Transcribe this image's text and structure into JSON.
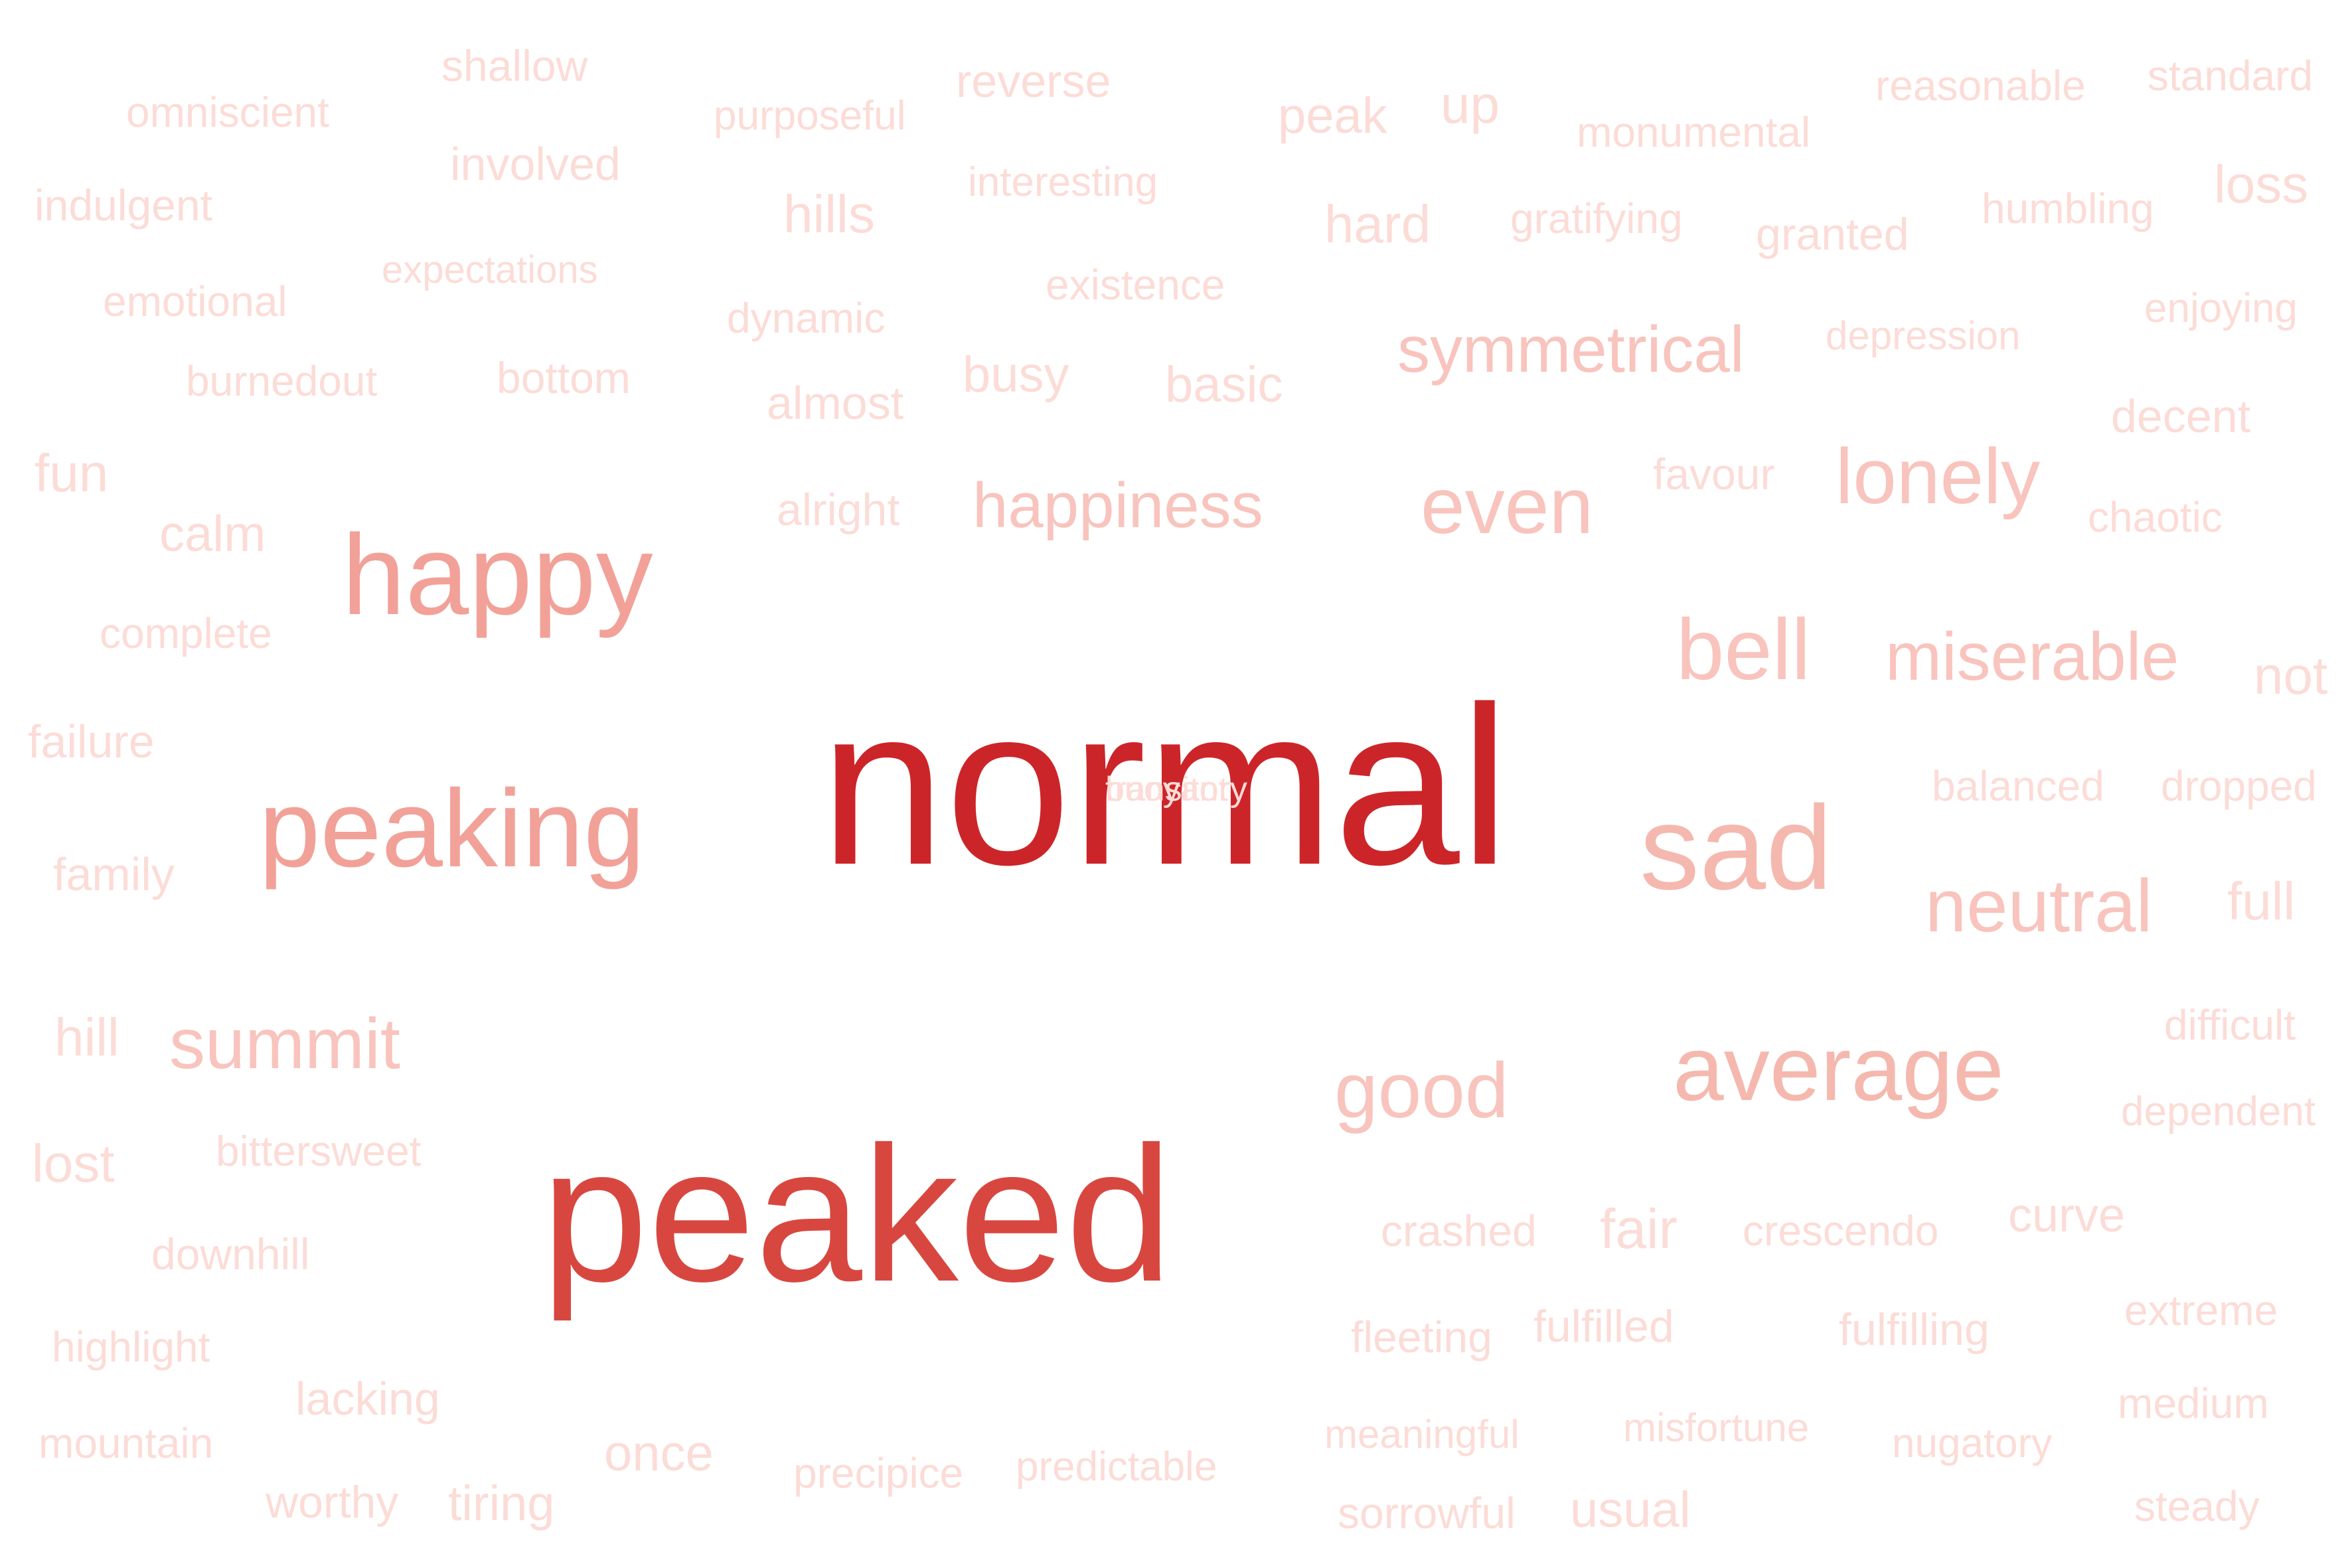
{
  "word_cloud": {
    "words": [
      {
        "text": "normal",
        "weight": 100,
        "color": "#cc2529"
      },
      {
        "text": "peaked",
        "weight": 70,
        "color": "#d8473f"
      },
      {
        "text": "happy",
        "weight": 32,
        "color": "#f2a198"
      },
      {
        "text": "peaking",
        "weight": 30,
        "color": "#f2a198"
      },
      {
        "text": "sad",
        "weight": 29,
        "color": "#f5b8ae"
      },
      {
        "text": "average",
        "weight": 24,
        "color": "#f5b8ae"
      },
      {
        "text": "bell",
        "weight": 22,
        "color": "#f8c4bd"
      },
      {
        "text": "even",
        "weight": 22,
        "color": "#f8c4bd"
      },
      {
        "text": "lonely",
        "weight": 21,
        "color": "#f8c4bd"
      },
      {
        "text": "miserable",
        "weight": 19,
        "color": "#f8c4bd"
      },
      {
        "text": "neutral",
        "weight": 19,
        "color": "#f8c4bd"
      },
      {
        "text": "summit",
        "weight": 19,
        "color": "#f8c4bd"
      },
      {
        "text": "good",
        "weight": 19,
        "color": "#f8c4bd"
      },
      {
        "text": "happiness",
        "weight": 18,
        "color": "#f8c4bd"
      },
      {
        "text": "symmetrical",
        "weight": 17,
        "color": "#f8c4bd"
      },
      {
        "text": "shallow",
        "weight": 12,
        "color": "#fcdcd7"
      },
      {
        "text": "omniscient",
        "weight": 12,
        "color": "#fcdcd7"
      },
      {
        "text": "purposeful",
        "weight": 11,
        "color": "#fcdcd7"
      },
      {
        "text": "reverse",
        "weight": 13,
        "color": "#fcdcd7"
      },
      {
        "text": "peak",
        "weight": 14,
        "color": "#fcdcd7"
      },
      {
        "text": "up",
        "weight": 15,
        "color": "#fcdcd7"
      },
      {
        "text": "monumental",
        "weight": 12,
        "color": "#fcdcd7"
      },
      {
        "text": "reasonable",
        "weight": 12,
        "color": "#fcdcd7"
      },
      {
        "text": "standard",
        "weight": 12,
        "color": "#fcdcd7"
      },
      {
        "text": "indulgent",
        "weight": 12,
        "color": "#fcdcd7"
      },
      {
        "text": "involved",
        "weight": 13,
        "color": "#fcdcd7"
      },
      {
        "text": "hills",
        "weight": 15,
        "color": "#fcdcd7"
      },
      {
        "text": "interesting",
        "weight": 12,
        "color": "#fcdcd7"
      },
      {
        "text": "hard",
        "weight": 15,
        "color": "#fcdcd7"
      },
      {
        "text": "gratifying",
        "weight": 12,
        "color": "#fcdcd7"
      },
      {
        "text": "granted",
        "weight": 13,
        "color": "#fcdcd7"
      },
      {
        "text": "humbling",
        "weight": 12,
        "color": "#fcdcd7"
      },
      {
        "text": "loss",
        "weight": 15,
        "color": "#fcdcd7"
      },
      {
        "text": "emotional",
        "weight": 12,
        "color": "#fcdcd7"
      },
      {
        "text": "expectations",
        "weight": 11,
        "color": "#fcdcd7"
      },
      {
        "text": "existence",
        "weight": 12,
        "color": "#fcdcd7"
      },
      {
        "text": "dynamic",
        "weight": 12,
        "color": "#fcdcd7"
      },
      {
        "text": "depression",
        "weight": 12,
        "color": "#fcdcd7"
      },
      {
        "text": "enjoying",
        "weight": 12,
        "color": "#fcdcd7"
      },
      {
        "text": "burnedout",
        "weight": 12,
        "color": "#fcdcd7"
      },
      {
        "text": "bottom",
        "weight": 13,
        "color": "#fcdcd7"
      },
      {
        "text": "busy",
        "weight": 14,
        "color": "#fcdcd7"
      },
      {
        "text": "basic",
        "weight": 14,
        "color": "#fcdcd7"
      },
      {
        "text": "almost",
        "weight": 13,
        "color": "#fcdcd7"
      },
      {
        "text": "decent",
        "weight": 13,
        "color": "#fcdcd7"
      },
      {
        "text": "fun",
        "weight": 15,
        "color": "#fcdcd7"
      },
      {
        "text": "favour",
        "weight": 13,
        "color": "#fcdcd7"
      },
      {
        "text": "alright",
        "weight": 13,
        "color": "#fcdcd7"
      },
      {
        "text": "chaotic",
        "weight": 12,
        "color": "#fcdcd7"
      },
      {
        "text": "calm",
        "weight": 14,
        "color": "#fcdcd7"
      },
      {
        "text": "complete",
        "weight": 12,
        "color": "#fcdcd7"
      },
      {
        "text": "not",
        "weight": 14,
        "color": "#fcdcd7"
      },
      {
        "text": "failure",
        "weight": 13,
        "color": "#fcdcd7"
      },
      {
        "text": "balanced",
        "weight": 12,
        "color": "#fcdcd7"
      },
      {
        "text": "dropped",
        "weight": 12,
        "color": "#fcdcd7"
      },
      {
        "text": "family",
        "weight": 13,
        "color": "#fcdcd7"
      },
      {
        "text": "full",
        "weight": 15,
        "color": "#fcdcd7"
      },
      {
        "text": "hill",
        "weight": 15,
        "color": "#fcdcd7"
      },
      {
        "text": "difficult",
        "weight": 12,
        "color": "#fcdcd7"
      },
      {
        "text": "dependent",
        "weight": 12,
        "color": "#fcdcd7"
      },
      {
        "text": "lost",
        "weight": 14,
        "color": "#fcdcd7"
      },
      {
        "text": "bittersweet",
        "weight": 12,
        "color": "#fcdcd7"
      },
      {
        "text": "downhill",
        "weight": 12,
        "color": "#fcdcd7"
      },
      {
        "text": "crashed",
        "weight": 13,
        "color": "#fcdcd7"
      },
      {
        "text": "fair",
        "weight": 15,
        "color": "#fcdcd7"
      },
      {
        "text": "crescendo",
        "weight": 12,
        "color": "#fcdcd7"
      },
      {
        "text": "curve",
        "weight": 14,
        "color": "#fcdcd7"
      },
      {
        "text": "highlight",
        "weight": 12,
        "color": "#fcdcd7"
      },
      {
        "text": "extreme",
        "weight": 12,
        "color": "#fcdcd7"
      },
      {
        "text": "fleeting",
        "weight": 13,
        "color": "#fcdcd7"
      },
      {
        "text": "fulfilled",
        "weight": 13,
        "color": "#fcdcd7"
      },
      {
        "text": "fulfilling",
        "weight": 13,
        "color": "#fcdcd7"
      },
      {
        "text": "lacking",
        "weight": 12,
        "color": "#fcdcd7"
      },
      {
        "text": "medium",
        "weight": 12,
        "color": "#fcdcd7"
      },
      {
        "text": "mountain",
        "weight": 12,
        "color": "#fcdcd7"
      },
      {
        "text": "once",
        "weight": 14,
        "color": "#fcdcd7"
      },
      {
        "text": "meaningful",
        "weight": 12,
        "color": "#fcdcd7"
      },
      {
        "text": "misfortune",
        "weight": 12,
        "color": "#fcdcd7"
      },
      {
        "text": "nugatory",
        "weight": 12,
        "color": "#fcdcd7"
      },
      {
        "text": "precipice",
        "weight": 12,
        "color": "#fcdcd7"
      },
      {
        "text": "predictable",
        "weight": 12,
        "color": "#fcdcd7"
      },
      {
        "text": "worthy",
        "weight": 13,
        "color": "#fcdcd7"
      },
      {
        "text": "tiring",
        "weight": 14,
        "color": "#fcdcd7"
      },
      {
        "text": "sorrowful",
        "weight": 12,
        "color": "#fcdcd7"
      },
      {
        "text": "usual",
        "weight": 14,
        "color": "#fcdcd7"
      },
      {
        "text": "steady",
        "weight": 12,
        "color": "#fcdcd7"
      },
      {
        "text": "buoyant",
        "weight": 5,
        "color": "#fcdcd7"
      },
      {
        "text": "transitory",
        "weight": 5,
        "color": "#fcdcd7"
      }
    ]
  }
}
